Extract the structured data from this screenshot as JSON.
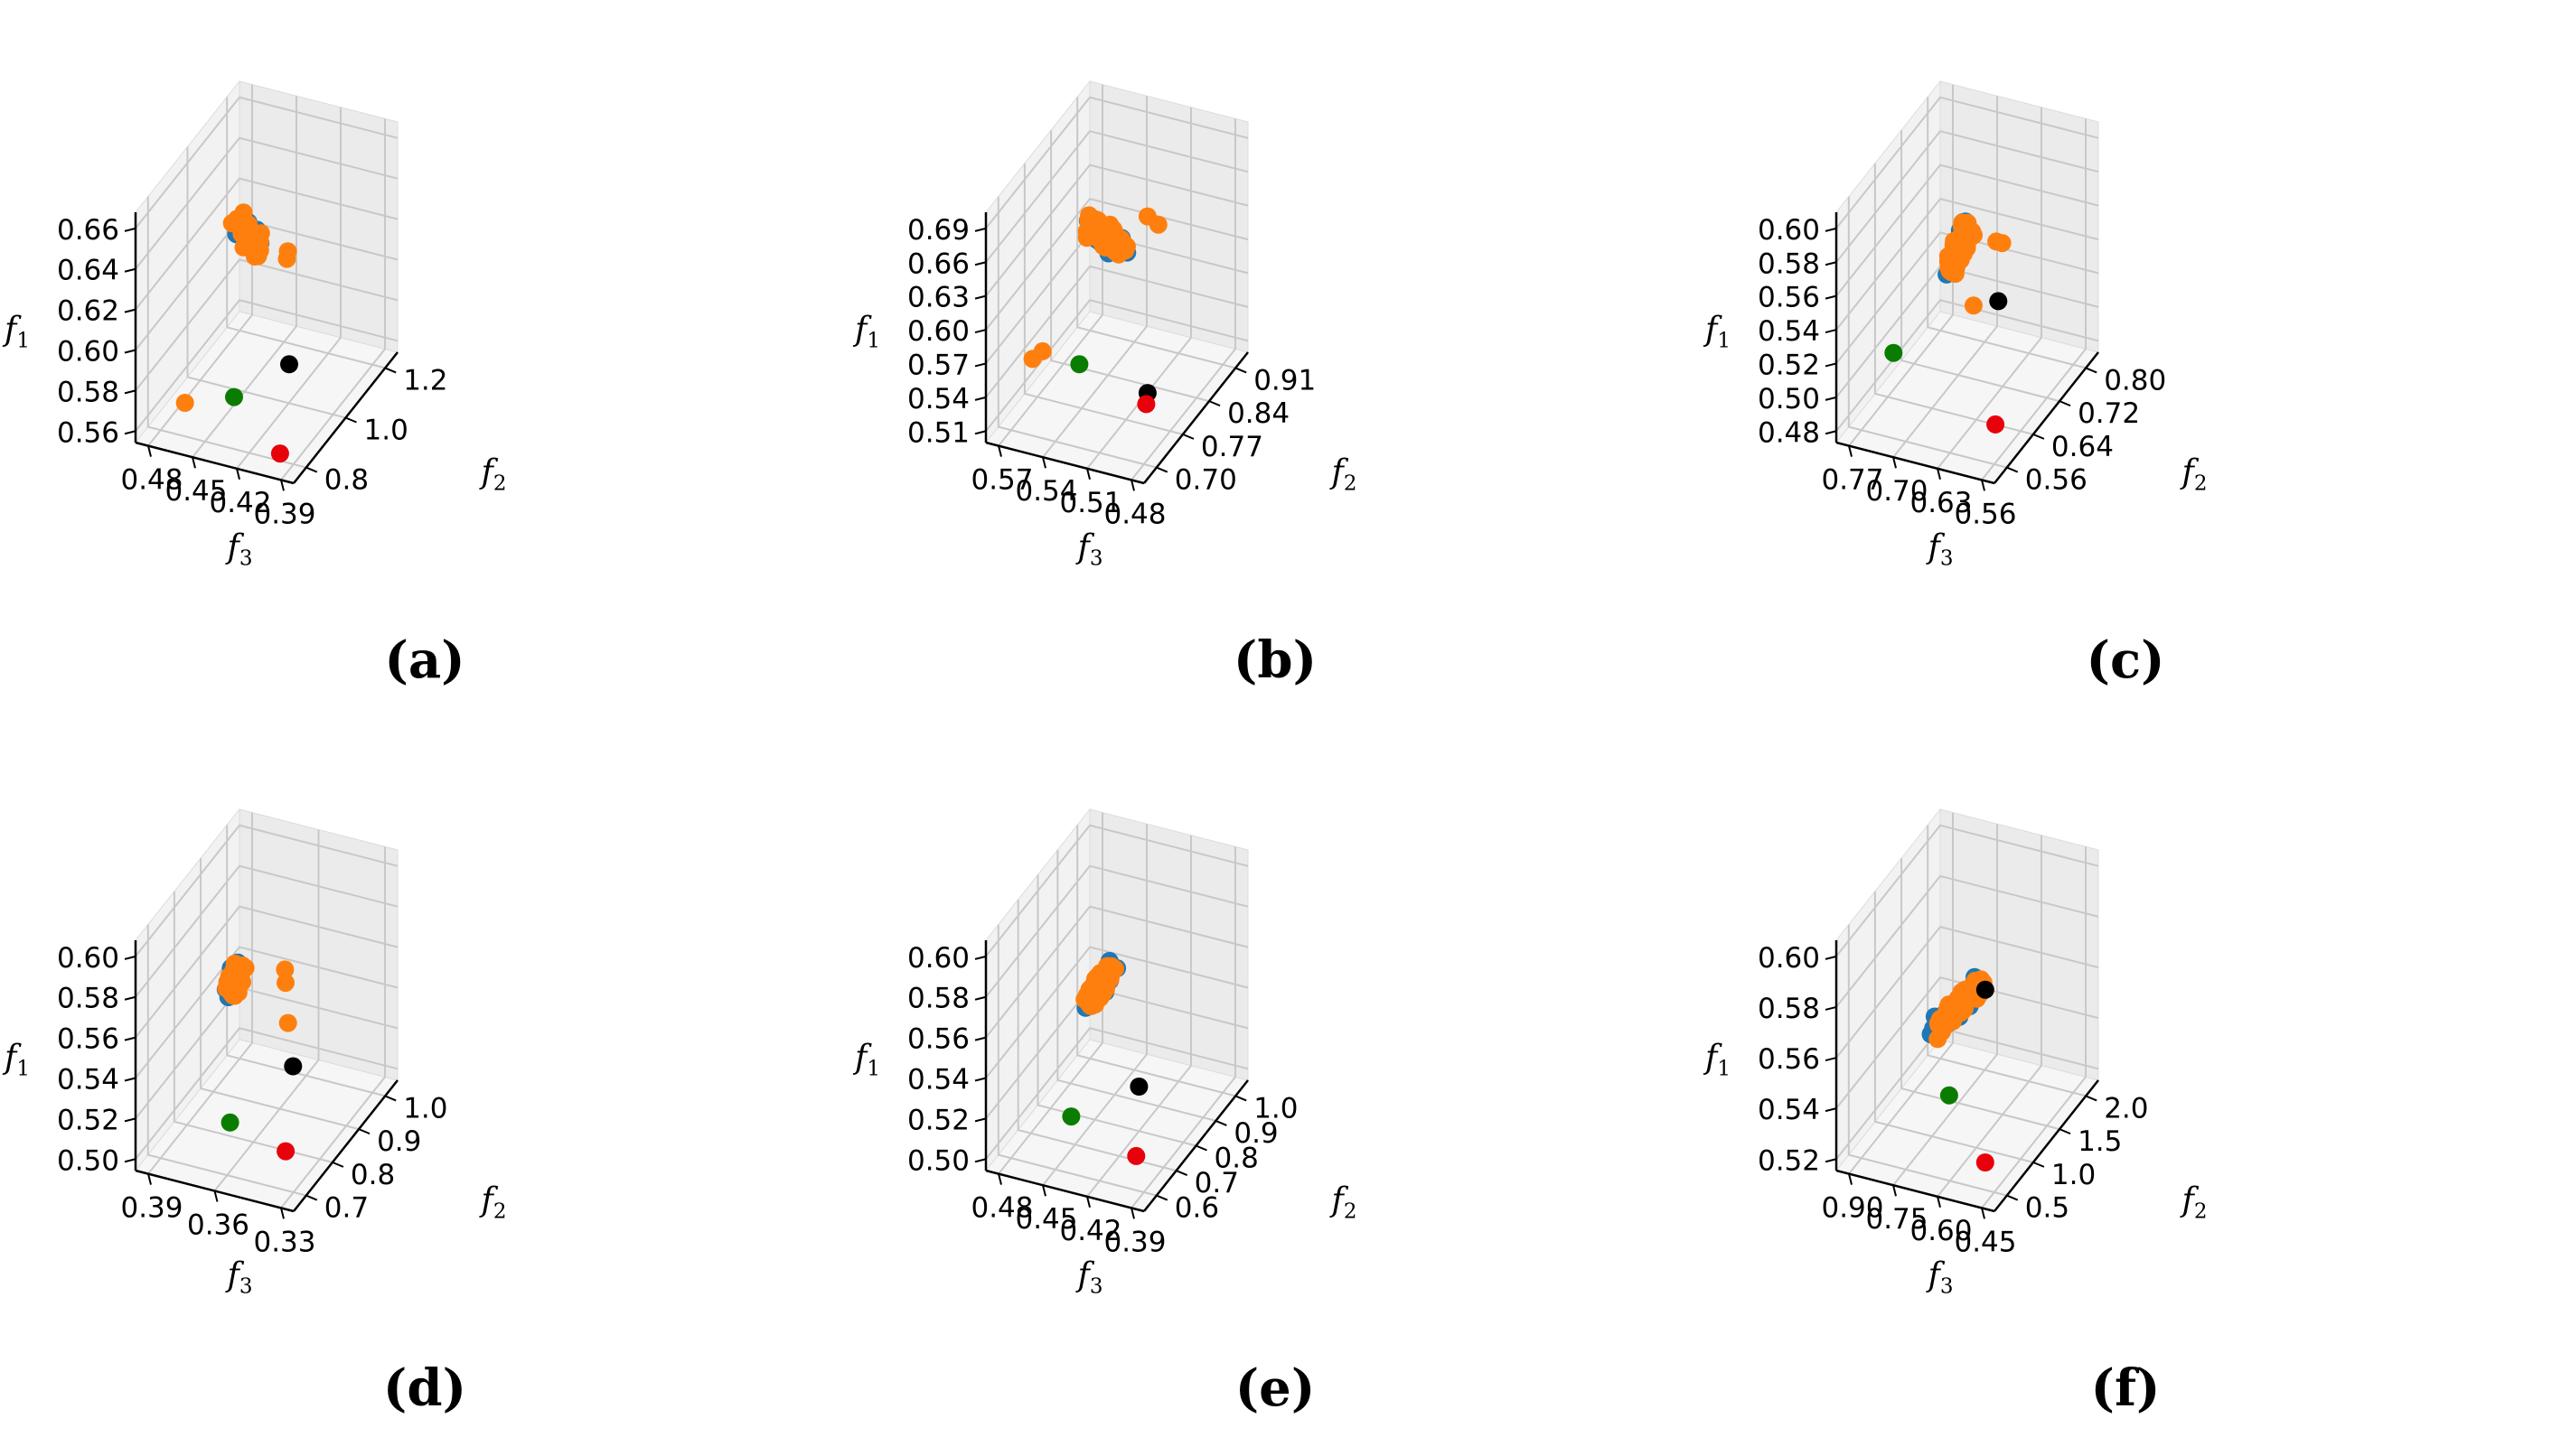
{
  "figure": {
    "colors": {
      "blue": "#1f77b4",
      "orange": "#ff7f0e",
      "black": "#000000",
      "red": "#e8000b",
      "green": "#0a7d00",
      "pane_back": "#f2f2f2",
      "pane_side": "#ebebeb",
      "pane_floor": "#f6f6f6",
      "grid": "#c8c8c8"
    }
  },
  "chart_data": [
    {
      "type": "scatter",
      "panel": "a",
      "caption": "(a)",
      "zlabel": "f",
      "zlabel_sub": "1",
      "ylabel": "f",
      "ylabel_sub": "2",
      "xlabel": "f",
      "xlabel_sub": "3",
      "x_ticks": [
        "0.39",
        "0.42",
        "0.45",
        "0.48"
      ],
      "y_ticks": [
        "0.8",
        "1.0",
        "1.2"
      ],
      "z_ticks": [
        "0.56",
        "0.58",
        "0.60",
        "0.62",
        "0.64",
        "0.66"
      ],
      "xlim": [
        0.375,
        0.495
      ],
      "ylim": [
        0.7,
        1.3
      ],
      "zlim": [
        0.56,
        0.67
      ],
      "seed": 11,
      "blue_count": 32,
      "orange_count": 70,
      "trend": {
        "x": [
          0.43,
          0.475
        ],
        "y": [
          0.8,
          1.25
        ],
        "z": [
          0.665,
          0.6
        ],
        "spread": 0.05
      },
      "special_points": [
        {
          "name": "black-point",
          "color": "black",
          "x": 0.385,
          "y": 0.75,
          "z": 0.61
        },
        {
          "name": "red-point",
          "color": "red",
          "x": 0.388,
          "y": 0.72,
          "z": 0.57
        },
        {
          "name": "green-point",
          "color": "green",
          "x": 0.44,
          "y": 0.85,
          "z": 0.575
        }
      ],
      "outlier_points": [
        {
          "color": "orange",
          "x": 0.39,
          "y": 0.78,
          "z": 0.66
        },
        {
          "color": "orange",
          "x": 0.392,
          "y": 0.79,
          "z": 0.655
        },
        {
          "color": "orange",
          "x": 0.468,
          "y": 0.78,
          "z": 0.575
        }
      ]
    },
    {
      "type": "scatter",
      "panel": "b",
      "caption": "(b)",
      "zlabel": "f",
      "zlabel_sub": "1",
      "ylabel": "f",
      "ylabel_sub": "2",
      "xlabel": "f",
      "xlabel_sub": "3",
      "x_ticks": [
        "0.48",
        "0.51",
        "0.54",
        "0.57"
      ],
      "y_ticks": [
        "0.70",
        "0.77",
        "0.84",
        "0.91"
      ],
      "z_ticks": [
        "0.51",
        "0.54",
        "0.57",
        "0.60",
        "0.63",
        "0.66",
        "0.69"
      ],
      "xlim": [
        0.465,
        0.575
      ],
      "ylim": [
        0.66,
        0.95
      ],
      "zlim": [
        0.51,
        0.71
      ],
      "seed": 23,
      "blue_count": 38,
      "orange_count": 75,
      "trend": {
        "x": [
          0.49,
          0.57
        ],
        "y": [
          0.7,
          0.92
        ],
        "z": [
          0.69,
          0.6
        ],
        "spread": 0.05
      },
      "special_points": [
        {
          "name": "black-point",
          "color": "black",
          "x": 0.47,
          "y": 0.69,
          "z": 0.575
        },
        {
          "name": "red-point",
          "color": "red",
          "x": 0.471,
          "y": 0.69,
          "z": 0.565
        },
        {
          "name": "green-point",
          "color": "green",
          "x": 0.52,
          "y": 0.7,
          "z": 0.58
        }
      ],
      "outlier_points": [
        {
          "color": "orange",
          "x": 0.475,
          "y": 0.74,
          "z": 0.7
        },
        {
          "color": "orange",
          "x": 0.485,
          "y": 0.75,
          "z": 0.7
        },
        {
          "color": "orange",
          "x": 0.56,
          "y": 0.73,
          "z": 0.56
        },
        {
          "color": "orange",
          "x": 0.563,
          "y": 0.77,
          "z": 0.55
        }
      ]
    },
    {
      "type": "scatter",
      "panel": "c",
      "caption": "(c)",
      "zlabel": "f",
      "zlabel_sub": "1",
      "ylabel": "f",
      "ylabel_sub": "2",
      "xlabel": "f",
      "xlabel_sub": "3",
      "x_ticks": [
        "0.56",
        "0.63",
        "0.70",
        "0.77"
      ],
      "y_ticks": [
        "0.56",
        "0.64",
        "0.72",
        "0.80"
      ],
      "z_ticks": [
        "0.48",
        "0.50",
        "0.52",
        "0.54",
        "0.56",
        "0.58",
        "0.60"
      ],
      "xlim": [
        0.52,
        0.79
      ],
      "ylim": [
        0.52,
        0.84
      ],
      "zlim": [
        0.48,
        0.61
      ],
      "seed": 37,
      "blue_count": 40,
      "orange_count": 72,
      "trend": {
        "x": [
          0.6,
          0.76
        ],
        "y": [
          0.58,
          0.82
        ],
        "z": [
          0.605,
          0.51
        ],
        "spread": 0.05
      },
      "special_points": [
        {
          "name": "black-point",
          "color": "black",
          "x": 0.53,
          "y": 0.55,
          "z": 0.575
        },
        {
          "name": "red-point",
          "color": "red",
          "x": 0.535,
          "y": 0.55,
          "z": 0.505
        },
        {
          "name": "green-point",
          "color": "green",
          "x": 0.77,
          "y": 0.66,
          "z": 0.5
        }
      ],
      "outlier_points": [
        {
          "color": "orange",
          "x": 0.54,
          "y": 0.58,
          "z": 0.6
        },
        {
          "color": "orange",
          "x": 0.55,
          "y": 0.58,
          "z": 0.6
        },
        {
          "color": "orange",
          "x": 0.6,
          "y": 0.6,
          "z": 0.555
        }
      ]
    },
    {
      "type": "scatter",
      "panel": "d",
      "caption": "(d)",
      "zlabel": "f",
      "zlabel_sub": "1",
      "ylabel": "f",
      "ylabel_sub": "2",
      "xlabel": "f",
      "xlabel_sub": "3",
      "x_ticks": [
        "0.33",
        "0.36",
        "0.39"
      ],
      "y_ticks": [
        "0.7",
        "0.8",
        "0.9",
        "1.0"
      ],
      "z_ticks": [
        "0.50",
        "0.52",
        "0.54",
        "0.56",
        "0.58",
        "0.60"
      ],
      "xlim": [
        0.315,
        0.415
      ],
      "ylim": [
        0.66,
        1.06
      ],
      "zlim": [
        0.49,
        0.615
      ],
      "seed": 41,
      "blue_count": 35,
      "orange_count": 72,
      "trend": {
        "x": [
          0.36,
          0.41
        ],
        "y": [
          0.72,
          1.0
        ],
        "z": [
          0.6,
          0.53
        ],
        "spread": 0.05
      },
      "special_points": [
        {
          "name": "black-point",
          "color": "black",
          "x": 0.322,
          "y": 0.7,
          "z": 0.56
        },
        {
          "name": "red-point",
          "color": "red",
          "x": 0.325,
          "y": 0.69,
          "z": 0.515
        },
        {
          "name": "green-point",
          "color": "green",
          "x": 0.37,
          "y": 0.75,
          "z": 0.51
        }
      ],
      "outlier_points": [
        {
          "color": "orange",
          "x": 0.33,
          "y": 0.72,
          "z": 0.6
        },
        {
          "color": "orange",
          "x": 0.332,
          "y": 0.73,
          "z": 0.605
        },
        {
          "color": "orange",
          "x": 0.335,
          "y": 0.76,
          "z": 0.57
        }
      ]
    },
    {
      "type": "scatter",
      "panel": "e",
      "caption": "(e)",
      "zlabel": "f",
      "zlabel_sub": "1",
      "ylabel": "f",
      "ylabel_sub": "2",
      "xlabel": "f",
      "xlabel_sub": "3",
      "x_ticks": [
        "0.39",
        "0.42",
        "0.45",
        "0.48"
      ],
      "y_ticks": [
        "0.6",
        "0.7",
        "0.8",
        "0.9",
        "1.0"
      ],
      "z_ticks": [
        "0.50",
        "0.52",
        "0.54",
        "0.56",
        "0.58",
        "0.60"
      ],
      "xlim": [
        0.37,
        0.485
      ],
      "ylim": [
        0.56,
        1.04
      ],
      "zlim": [
        0.495,
        0.61
      ],
      "seed": 53,
      "blue_count": 42,
      "orange_count": 88,
      "trend": {
        "x": [
          0.4,
          0.48
        ],
        "y": [
          0.6,
          1.0
        ],
        "z": [
          0.605,
          0.52
        ],
        "spread": 0.05
      },
      "special_points": [
        {
          "name": "black-point",
          "color": "black",
          "x": 0.38,
          "y": 0.6,
          "z": 0.55
        },
        {
          "name": "red-point",
          "color": "red",
          "x": 0.382,
          "y": 0.6,
          "z": 0.515
        },
        {
          "name": "green-point",
          "color": "green",
          "x": 0.445,
          "y": 0.7,
          "z": 0.51
        }
      ],
      "outlier_points": []
    },
    {
      "type": "scatter",
      "panel": "f",
      "caption": "(f)",
      "zlabel": "f",
      "zlabel_sub": "1",
      "ylabel": "f",
      "ylabel_sub": "2",
      "xlabel": "f",
      "xlabel_sub": "3",
      "x_ticks": [
        "0.45",
        "0.60",
        "0.75",
        "0.90"
      ],
      "y_ticks": [
        "0.5",
        "1.0",
        "1.5",
        "2.0"
      ],
      "z_ticks": [
        "0.52",
        "0.54",
        "0.56",
        "0.58",
        "0.60"
      ],
      "xlim": [
        0.35,
        1.0
      ],
      "ylim": [
        0.3,
        2.3
      ],
      "zlim": [
        0.515,
        0.615
      ],
      "seed": 67,
      "blue_count": 40,
      "orange_count": 85,
      "trend": {
        "x": [
          0.45,
          0.95
        ],
        "y": [
          0.5,
          2.0
        ],
        "z": [
          0.605,
          0.53
        ],
        "spread": 0.045
      },
      "special_points": [
        {
          "name": "black-point",
          "color": "black",
          "x": 0.42,
          "y": 0.45,
          "z": 0.605
        },
        {
          "name": "red-point",
          "color": "red",
          "x": 0.42,
          "y": 0.45,
          "z": 0.53
        },
        {
          "name": "green-point",
          "color": "green",
          "x": 0.6,
          "y": 0.6,
          "z": 0.55
        }
      ],
      "outlier_points": []
    }
  ]
}
